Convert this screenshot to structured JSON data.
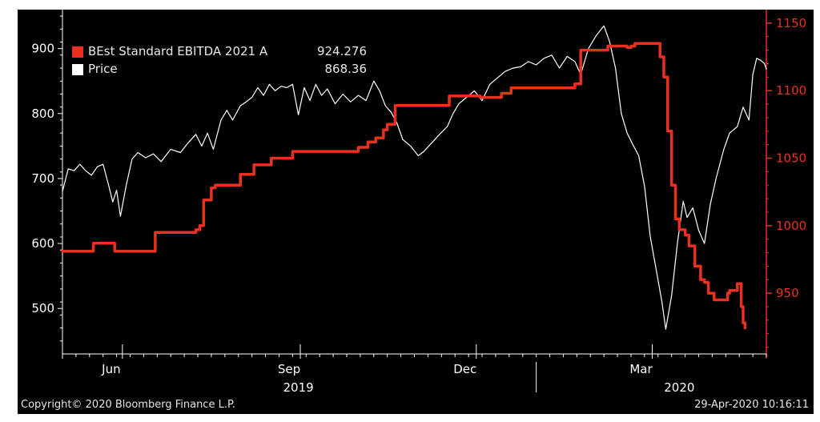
{
  "colors": {
    "background": "#000000",
    "price": "#ffffff",
    "estimate": "#e8321f",
    "left_axis": "#ffffff",
    "right_axis": "#e8321f"
  },
  "legend": {
    "items": [
      {
        "label": "BEst Standard EBITDA 2021 A",
        "value": "924.276",
        "color": "#e8321f"
      },
      {
        "label": "Price",
        "value": "868.36",
        "color": "#ffffff"
      }
    ]
  },
  "footer": {
    "copyright": "Copyright© 2020 Bloomberg Finance L.P.",
    "timestamp": "29-Apr-2020 10:16:11"
  },
  "chart_data": {
    "type": "line",
    "legend_position": "top-left",
    "grid": false,
    "x_axis": {
      "range": [
        "2019-05-01",
        "2020-04-29"
      ],
      "month_ticks": [
        {
          "label": "Jun",
          "date": "2019-06-01"
        },
        {
          "label": "Sep",
          "date": "2019-09-01"
        },
        {
          "label": "Dec",
          "date": "2019-12-01"
        },
        {
          "label": "Mar",
          "date": "2020-03-01"
        }
      ],
      "year_labels": [
        {
          "label": "2019",
          "date": "2019-08-31"
        },
        {
          "label": "2020",
          "date": "2020-03-15"
        }
      ],
      "year_divider": "2020-01-01"
    },
    "y_left": {
      "range": [
        430,
        960
      ],
      "ticks": [
        500,
        600,
        700,
        800,
        900
      ]
    },
    "y_right": {
      "range": [
        905,
        1160
      ],
      "ticks": [
        950,
        1000,
        1050,
        1100,
        1150
      ]
    },
    "series": [
      {
        "name": "Price",
        "axis": "left",
        "points": [
          [
            "2019-05-01",
            680
          ],
          [
            "2019-05-04",
            715
          ],
          [
            "2019-05-07",
            712
          ],
          [
            "2019-05-10",
            722
          ],
          [
            "2019-05-13",
            712
          ],
          [
            "2019-05-16",
            705
          ],
          [
            "2019-05-19",
            718
          ],
          [
            "2019-05-22",
            722
          ],
          [
            "2019-05-25",
            688
          ],
          [
            "2019-05-27",
            664
          ],
          [
            "2019-05-29",
            682
          ],
          [
            "2019-05-31",
            642
          ],
          [
            "2019-06-03",
            690
          ],
          [
            "2019-06-06",
            730
          ],
          [
            "2019-06-09",
            740
          ],
          [
            "2019-06-13",
            732
          ],
          [
            "2019-06-17",
            738
          ],
          [
            "2019-06-21",
            726
          ],
          [
            "2019-06-26",
            745
          ],
          [
            "2019-07-01",
            740
          ],
          [
            "2019-07-05",
            755
          ],
          [
            "2019-07-09",
            768
          ],
          [
            "2019-07-12",
            750
          ],
          [
            "2019-07-15",
            770
          ],
          [
            "2019-07-18",
            745
          ],
          [
            "2019-07-22",
            790
          ],
          [
            "2019-07-25",
            805
          ],
          [
            "2019-07-28",
            790
          ],
          [
            "2019-08-01",
            812
          ],
          [
            "2019-08-04",
            818
          ],
          [
            "2019-08-07",
            825
          ],
          [
            "2019-08-10",
            840
          ],
          [
            "2019-08-13",
            828
          ],
          [
            "2019-08-16",
            845
          ],
          [
            "2019-08-19",
            835
          ],
          [
            "2019-08-22",
            842
          ],
          [
            "2019-08-25",
            840
          ],
          [
            "2019-08-28",
            845
          ],
          [
            "2019-08-31",
            798
          ],
          [
            "2019-09-03",
            840
          ],
          [
            "2019-09-06",
            820
          ],
          [
            "2019-09-09",
            845
          ],
          [
            "2019-09-12",
            828
          ],
          [
            "2019-09-15",
            838
          ],
          [
            "2019-09-19",
            815
          ],
          [
            "2019-09-23",
            830
          ],
          [
            "2019-09-27",
            818
          ],
          [
            "2019-10-01",
            828
          ],
          [
            "2019-10-05",
            820
          ],
          [
            "2019-10-09",
            850
          ],
          [
            "2019-10-12",
            835
          ],
          [
            "2019-10-15",
            812
          ],
          [
            "2019-10-18",
            802
          ],
          [
            "2019-10-21",
            785
          ],
          [
            "2019-10-24",
            760
          ],
          [
            "2019-10-28",
            750
          ],
          [
            "2019-11-01",
            735
          ],
          [
            "2019-11-04",
            742
          ],
          [
            "2019-11-08",
            755
          ],
          [
            "2019-11-12",
            768
          ],
          [
            "2019-11-16",
            780
          ],
          [
            "2019-11-19",
            800
          ],
          [
            "2019-11-22",
            815
          ],
          [
            "2019-11-26",
            825
          ],
          [
            "2019-11-30",
            835
          ],
          [
            "2019-12-04",
            820
          ],
          [
            "2019-12-08",
            845
          ],
          [
            "2019-12-12",
            855
          ],
          [
            "2019-12-16",
            865
          ],
          [
            "2019-12-20",
            870
          ],
          [
            "2019-12-24",
            872
          ],
          [
            "2019-12-28",
            880
          ],
          [
            "2020-01-01",
            875
          ],
          [
            "2020-01-05",
            885
          ],
          [
            "2020-01-09",
            890
          ],
          [
            "2020-01-13",
            870
          ],
          [
            "2020-01-17",
            888
          ],
          [
            "2020-01-21",
            880
          ],
          [
            "2020-01-24",
            860
          ],
          [
            "2020-01-28",
            900
          ],
          [
            "2020-02-01",
            920
          ],
          [
            "2020-02-05",
            935
          ],
          [
            "2020-02-08",
            910
          ],
          [
            "2020-02-11",
            870
          ],
          [
            "2020-02-14",
            800
          ],
          [
            "2020-02-17",
            770
          ],
          [
            "2020-02-20",
            752
          ],
          [
            "2020-02-23",
            735
          ],
          [
            "2020-02-26",
            688
          ],
          [
            "2020-02-29",
            610
          ],
          [
            "2020-03-03",
            560
          ],
          [
            "2020-03-06",
            510
          ],
          [
            "2020-03-08",
            468
          ],
          [
            "2020-03-11",
            520
          ],
          [
            "2020-03-14",
            600
          ],
          [
            "2020-03-17",
            665
          ],
          [
            "2020-03-19",
            640
          ],
          [
            "2020-03-22",
            655
          ],
          [
            "2020-03-25",
            620
          ],
          [
            "2020-03-28",
            600
          ],
          [
            "2020-03-31",
            660
          ],
          [
            "2020-04-03",
            700
          ],
          [
            "2020-04-07",
            745
          ],
          [
            "2020-04-10",
            770
          ],
          [
            "2020-04-14",
            780
          ],
          [
            "2020-04-17",
            810
          ],
          [
            "2020-04-20",
            790
          ],
          [
            "2020-04-22",
            860
          ],
          [
            "2020-04-24",
            885
          ],
          [
            "2020-04-26",
            882
          ],
          [
            "2020-04-28",
            877
          ],
          [
            "2020-04-29",
            868.36
          ]
        ]
      },
      {
        "name": "BEst Standard EBITDA 2021 A",
        "axis": "right",
        "step": true,
        "points": [
          [
            "2019-05-01",
            981
          ],
          [
            "2019-05-17",
            987
          ],
          [
            "2019-05-28",
            981
          ],
          [
            "2019-06-18",
            995
          ],
          [
            "2019-07-09",
            997
          ],
          [
            "2019-07-11",
            1000
          ],
          [
            "2019-07-13",
            1019
          ],
          [
            "2019-07-17",
            1028
          ],
          [
            "2019-07-19",
            1030
          ],
          [
            "2019-08-01",
            1038
          ],
          [
            "2019-08-08",
            1045
          ],
          [
            "2019-08-17",
            1050
          ],
          [
            "2019-08-28",
            1055
          ],
          [
            "2019-09-12",
            1055
          ],
          [
            "2019-10-01",
            1058
          ],
          [
            "2019-10-06",
            1062
          ],
          [
            "2019-10-10",
            1065
          ],
          [
            "2019-10-14",
            1071
          ],
          [
            "2019-10-16",
            1075
          ],
          [
            "2019-10-20",
            1089
          ],
          [
            "2019-11-12",
            1089
          ],
          [
            "2019-11-17",
            1096
          ],
          [
            "2019-12-03",
            1095
          ],
          [
            "2019-12-14",
            1098
          ],
          [
            "2019-12-19",
            1102
          ],
          [
            "2020-01-06",
            1102
          ],
          [
            "2020-01-21",
            1105
          ],
          [
            "2020-01-24",
            1130
          ],
          [
            "2020-02-07",
            1133
          ],
          [
            "2020-02-17",
            1132
          ],
          [
            "2020-02-19",
            1133
          ],
          [
            "2020-02-21",
            1135
          ],
          [
            "2020-03-04",
            1135
          ],
          [
            "2020-03-05",
            1125
          ],
          [
            "2020-03-07",
            1110
          ],
          [
            "2020-03-09",
            1070
          ],
          [
            "2020-03-11",
            1030
          ],
          [
            "2020-03-13",
            1005
          ],
          [
            "2020-03-15",
            997
          ],
          [
            "2020-03-18",
            993
          ],
          [
            "2020-03-20",
            985
          ],
          [
            "2020-03-23",
            970
          ],
          [
            "2020-03-26",
            960
          ],
          [
            "2020-03-28",
            958
          ],
          [
            "2020-03-30",
            950
          ],
          [
            "2020-04-02",
            945
          ],
          [
            "2020-04-07",
            945
          ],
          [
            "2020-04-09",
            950
          ],
          [
            "2020-04-10",
            952
          ],
          [
            "2020-04-14",
            957
          ],
          [
            "2020-04-16",
            940
          ],
          [
            "2020-04-17",
            928
          ],
          [
            "2020-04-18",
            924.276
          ]
        ]
      }
    ]
  }
}
